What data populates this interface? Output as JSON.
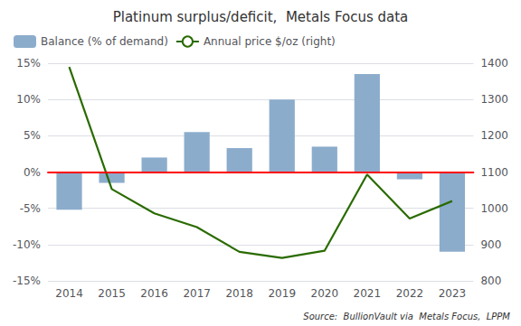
{
  "chart_data": {
    "type": "bar",
    "title": "Platinum surplus/deficit,  Metals Focus data",
    "annotations": [
      "Source:  BullionVault via  Metals Focus,  LPPM"
    ],
    "categories": [
      "2014",
      "2015",
      "2016",
      "2017",
      "2018",
      "2019",
      "2020",
      "2021",
      "2022",
      "2023"
    ],
    "series": [
      {
        "name": "Balance (% of demand)",
        "type": "bar",
        "color": "#8caccc",
        "values": [
          -5.2,
          -1.5,
          2.0,
          5.5,
          3.3,
          10.0,
          3.5,
          13.5,
          -1.0,
          -11.0
        ]
      },
      {
        "name": "Annual price $/oz (right)",
        "type": "line",
        "color": "#2a6b00",
        "axis": "y2",
        "values": [
          1390,
          1053,
          986,
          948,
          880,
          863,
          883,
          1093,
          972,
          1020
        ]
      }
    ],
    "ylim": [
      -15,
      15
    ],
    "yticks": [
      {
        "value": -15,
        "label": "-15%"
      },
      {
        "value": -10,
        "label": "-10%"
      },
      {
        "value": -5,
        "label": "-5%"
      },
      {
        "value": 0,
        "label": "0%"
      },
      {
        "value": 5,
        "label": "5%"
      },
      {
        "value": 10,
        "label": "10%"
      },
      {
        "value": 15,
        "label": "15%"
      }
    ],
    "y2lim": [
      800,
      1400
    ],
    "y2ticks": [
      800,
      900,
      1000,
      1100,
      1200,
      1300,
      1400
    ],
    "grid": true,
    "legend": "upper left"
  }
}
